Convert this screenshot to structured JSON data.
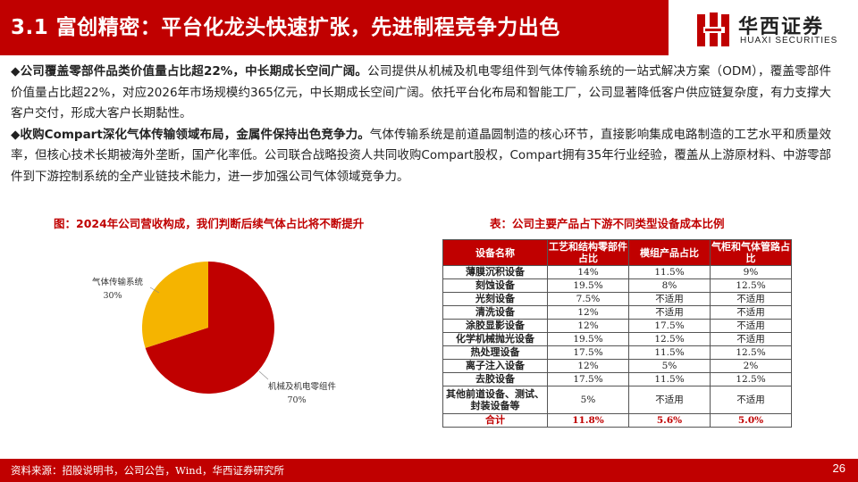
{
  "header": {
    "title": "3.1 富创精密：平台化龙头快速扩张，先进制程竞争力出色",
    "logo_cn": "华西证券",
    "logo_en": "HUAXI SECURITIES"
  },
  "paragraphs": [
    {
      "bullet": "◆",
      "lead": "公司覆盖零部件品类价值量占比超22%，中长期成长空间广阔。",
      "body": "公司提供从机械及机电零组件到气体传输系统的一站式解决方案（ODM），覆盖零部件价值量占比超22%，对应2026年市场规模约365亿元，中长期成长空间广阔。依托平台化布局和智能工厂，公司显著降低客户供应链复杂度，有力支撑大客户交付，形成大客户长期黏性。"
    },
    {
      "bullet": "◆",
      "lead": "收购Compart深化气体传输领域布局，金属件保持出色竞争力。",
      "body": "气体传输系统是前道晶圆制造的核心环节，直接影响集成电路制造的工艺水平和质量效率，但核心技术长期被海外垄断，国产化率低。公司联合战略投资人共同收购Compart股权，Compart拥有35年行业经验，覆盖从上游原材料、中游零部件到下游控制系统的全产业链技术能力，进一步加强公司气体领域竞争力。"
    }
  ],
  "chart_title": "图：2024年公司营收构成，我们判断后续气体占比将不断提升",
  "table_title": "表：公司主要产品占下游不同类型设备成本比例",
  "chart_data": {
    "type": "pie",
    "title": "图：2024年公司营收构成，我们判断后续气体占比将不断提升",
    "slices": [
      {
        "name": "机械及机电零组件",
        "value": 70,
        "label": "70%",
        "color": "#c00000"
      },
      {
        "name": "气体传输系统",
        "value": 30,
        "label": "30%",
        "color": "#f5b400"
      }
    ]
  },
  "table": {
    "headers": [
      "设备名称",
      "工艺和结构零部件占比",
      "模组产品占比",
      "气柜和气体管路占比"
    ],
    "rows": [
      [
        "薄膜沉积设备",
        "14%",
        "11.5%",
        "9%"
      ],
      [
        "刻蚀设备",
        "19.5%",
        "8%",
        "12.5%"
      ],
      [
        "光刻设备",
        "7.5%",
        "不适用",
        "不适用"
      ],
      [
        "清洗设备",
        "12%",
        "不适用",
        "不适用"
      ],
      [
        "涂胶显影设备",
        "12%",
        "17.5%",
        "不适用"
      ],
      [
        "化学机械抛光设备",
        "19.5%",
        "12.5%",
        "不适用"
      ],
      [
        "热处理设备",
        "17.5%",
        "11.5%",
        "12.5%"
      ],
      [
        "离子注入设备",
        "12%",
        "5%",
        "2%"
      ],
      [
        "去胶设备",
        "17.5%",
        "11.5%",
        "12.5%"
      ],
      [
        "其他前道设备、测试、封装设备等",
        "5%",
        "不适用",
        "不适用"
      ]
    ],
    "total": [
      "合计",
      "11.8%",
      "5.6%",
      "5.0%"
    ]
  },
  "footer": {
    "source": "资料来源：招股说明书，公司公告，Wind，华西证券研究所",
    "page": "26"
  },
  "colors": {
    "brand_red": "#c00000",
    "gas_yellow": "#f5b400"
  }
}
